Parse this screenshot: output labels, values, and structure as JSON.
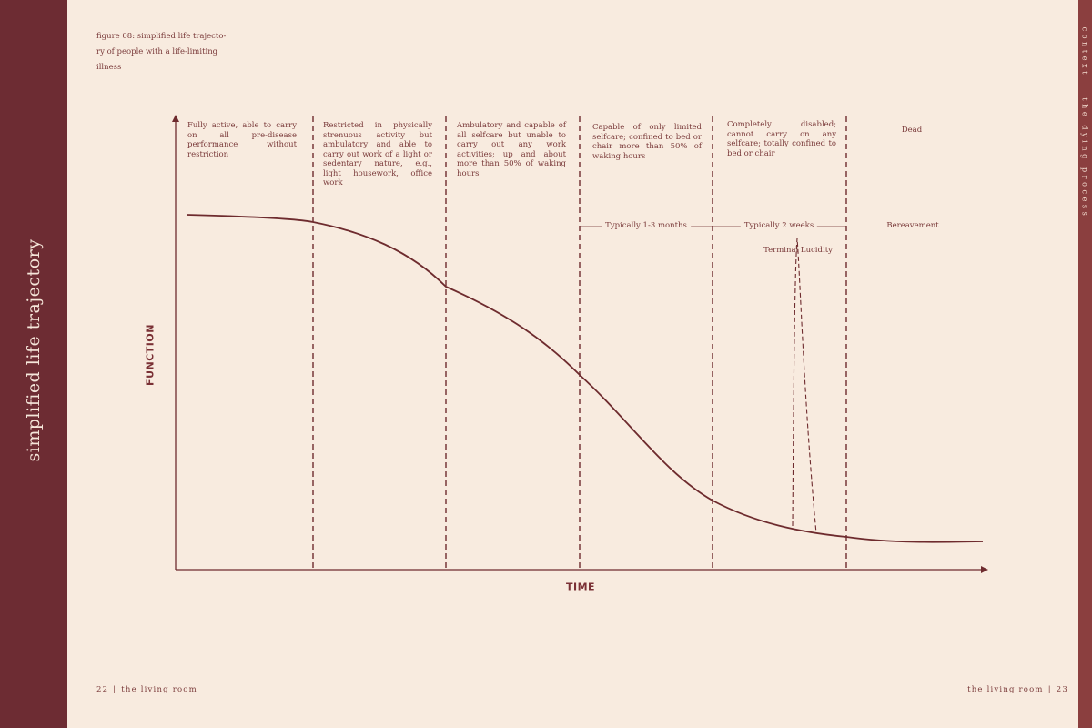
{
  "side_title": "simplified life trajectory",
  "right_header": {
    "part1": "context",
    "separator": "|",
    "part2": "the dying process"
  },
  "caption": "figure 08: simplified life trajecto-ry of people with a life-limiting illness",
  "axes": {
    "y_label": "FUNCTION",
    "x_label": "TIME"
  },
  "stages": [
    {
      "text": "Fully active, able to carry on all pre-disease performance without restriction"
    },
    {
      "text": "Restricted in physically strenuous activity but ambulatory and able to carry out work of a light or sedentary nature, e.g., light housework, office work"
    },
    {
      "text": "Ambulatory and capable of all selfcare but unable to carry out any work activities; up and about more than 50% of waking hours"
    },
    {
      "text": "Capable of only limited selfcare; confined to bed or chair more than 50% of waking hours"
    },
    {
      "text": "Completely disabled; cannot carry on any selfcare; totally confined to bed or chair"
    },
    {
      "text": "Dead"
    }
  ],
  "timeframes": {
    "months": "Typically 1-3 months",
    "weeks": "Typically 2 weeks",
    "bereavement": "Bereavement"
  },
  "annotation": "Terminal Lucidity",
  "footer": {
    "left_page": "22",
    "left_title": "the living room",
    "right_title": "the living room",
    "right_page": "23",
    "bar": "|"
  },
  "colors": {
    "accent": "#6d2c33",
    "curve": "#6e2b2e",
    "background": "#f8ebdf"
  }
}
